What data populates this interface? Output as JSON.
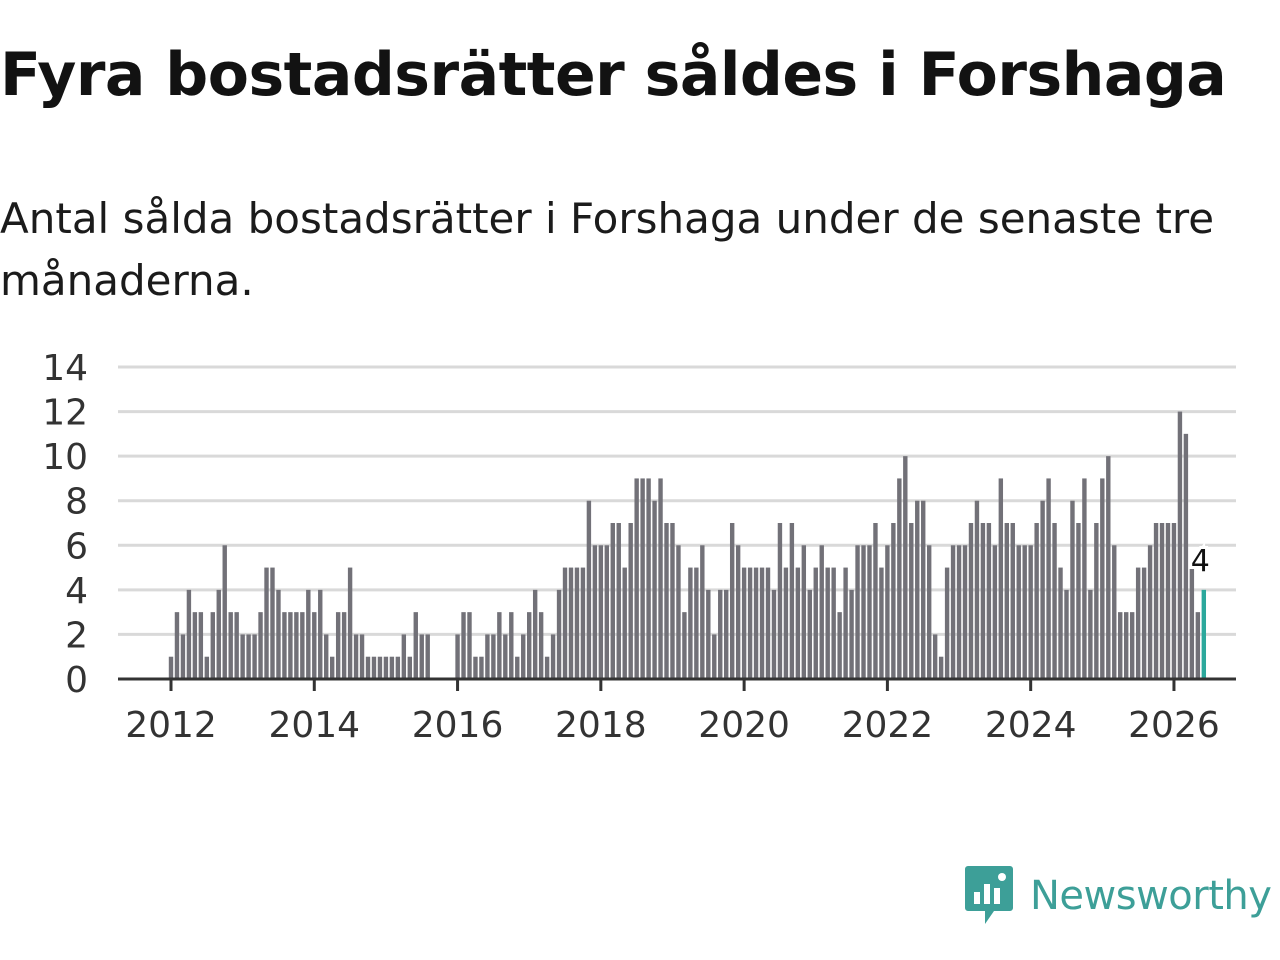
{
  "title": "Fyra bostadsrätter såldes i Forshaga",
  "subtitle": "Antal sålda bostadsrätter i Forshaga under de senaste tre månaderna.",
  "logo": {
    "text": "Newsworthy",
    "icon": "newsworthy-chart-icon"
  },
  "colors": {
    "bar": "#727178",
    "highlight": "#2ba89c",
    "grid": "#d9d9d9",
    "axis": "#333333",
    "logo": "#3d9f98"
  },
  "chart_data": {
    "type": "bar",
    "title": "Fyra bostadsrätter såldes i Forshaga",
    "xlabel": "",
    "ylabel": "",
    "ylim": [
      0,
      14
    ],
    "yticks": [
      0,
      2,
      4,
      6,
      8,
      10,
      12,
      14
    ],
    "xticks": [
      "2012",
      "2014",
      "2016",
      "2018",
      "2020",
      "2022",
      "2024",
      "2026"
    ],
    "start": "2012-01",
    "values": [
      1,
      3,
      2,
      4,
      3,
      3,
      1,
      3,
      4,
      6,
      3,
      3,
      2,
      2,
      2,
      3,
      5,
      5,
      4,
      3,
      3,
      3,
      3,
      4,
      3,
      4,
      2,
      1,
      3,
      3,
      5,
      2,
      2,
      1,
      1,
      1,
      1,
      1,
      1,
      2,
      1,
      3,
      2,
      2,
      0,
      0,
      0,
      0,
      2,
      3,
      3,
      1,
      1,
      2,
      2,
      3,
      2,
      3,
      1,
      2,
      3,
      4,
      3,
      1,
      2,
      4,
      5,
      5,
      5,
      5,
      8,
      6,
      6,
      6,
      7,
      7,
      5,
      7,
      9,
      9,
      9,
      8,
      9,
      7,
      7,
      6,
      3,
      5,
      5,
      6,
      4,
      2,
      4,
      4,
      7,
      6,
      5,
      5,
      5,
      5,
      5,
      4,
      7,
      5,
      7,
      5,
      6,
      4,
      5,
      6,
      5,
      5,
      3,
      5,
      4,
      6,
      6,
      6,
      7,
      5,
      6,
      7,
      9,
      10,
      7,
      8,
      8,
      6,
      2,
      1,
      5,
      6,
      6,
      6,
      7,
      8,
      7,
      7,
      6,
      9,
      7,
      7,
      6,
      6,
      6,
      7,
      8,
      9,
      7,
      5,
      4,
      8,
      7,
      9,
      4,
      7,
      9,
      10,
      6,
      3,
      3,
      3,
      5,
      5,
      6,
      7,
      7,
      7,
      7,
      12,
      11,
      5,
      3,
      4
    ],
    "highlight_last": true,
    "data_label": "4"
  }
}
